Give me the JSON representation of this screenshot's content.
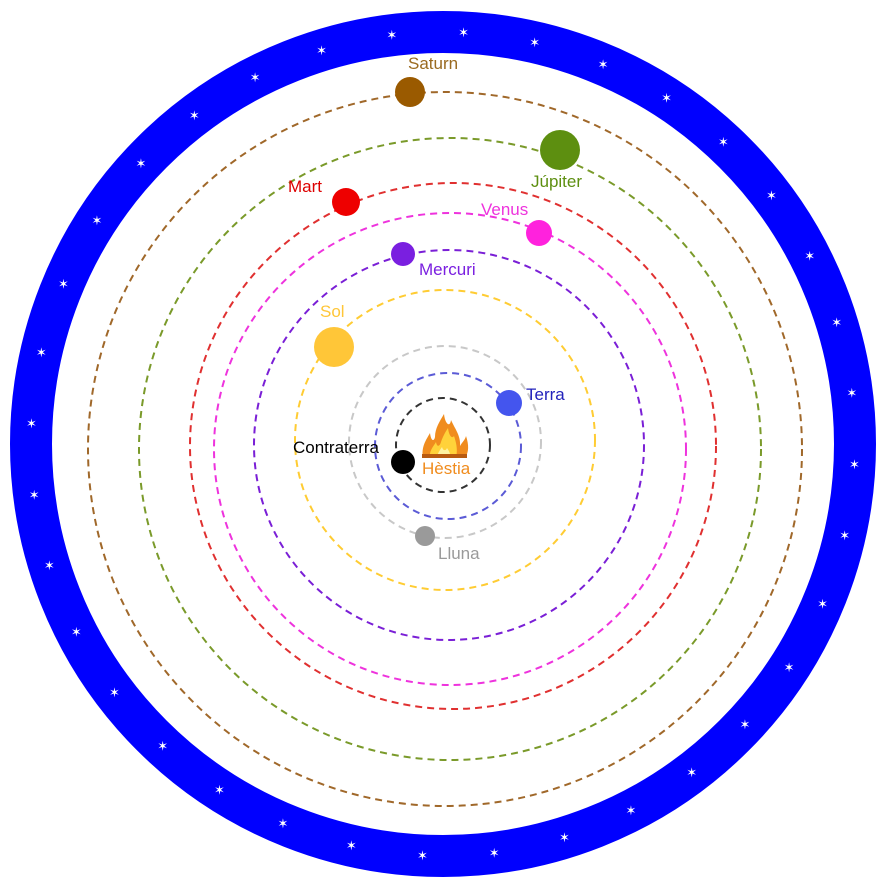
{
  "center_fire": {
    "label": "Hèstia",
    "color": "#f08c1e",
    "icon": "fire-icon"
  },
  "fixed_stars_ring": {
    "color": "#0000ff",
    "star_glyph": "✶"
  },
  "orbits": [
    {
      "id": "hestia",
      "color": "#333333"
    },
    {
      "id": "contraterra",
      "color": "#5b5bd6"
    },
    {
      "id": "lluna",
      "color": "#c8c8c8"
    },
    {
      "id": "sol",
      "color": "#ffcc33"
    },
    {
      "id": "mercuri",
      "color": "#7a1fd6"
    },
    {
      "id": "venus",
      "color": "#ee33dd"
    },
    {
      "id": "mart",
      "color": "#e03030"
    },
    {
      "id": "jupiter",
      "color": "#7a9a2a"
    },
    {
      "id": "saturn",
      "color": "#a0682a"
    }
  ],
  "bodies": [
    {
      "id": "contraterra",
      "label": "Contraterra",
      "color": "#000000",
      "label_color": "#000000"
    },
    {
      "id": "terra",
      "label": "Terra",
      "color": "#4455ee",
      "label_color": "#2222bb"
    },
    {
      "id": "lluna",
      "label": "Lluna",
      "color": "#9a9a9a",
      "label_color": "#9a9a9a"
    },
    {
      "id": "sol",
      "label": "Sol",
      "color": "#ffc638",
      "label_color": "#ffc638"
    },
    {
      "id": "mercuri",
      "label": "Mercuri",
      "color": "#7a1fe0",
      "label_color": "#7a1fe0"
    },
    {
      "id": "venus",
      "label": "Venus",
      "color": "#ff22dd",
      "label_color": "#ee33dd"
    },
    {
      "id": "mart",
      "label": "Mart",
      "color": "#ee0000",
      "label_color": "#dd0000"
    },
    {
      "id": "jupiter",
      "label": "Júpiter",
      "color": "#5d8f10",
      "label_color": "#5d8f10"
    },
    {
      "id": "saturn",
      "label": "Saturn",
      "color": "#9a5a00",
      "label_color": "#9a6a20"
    }
  ]
}
